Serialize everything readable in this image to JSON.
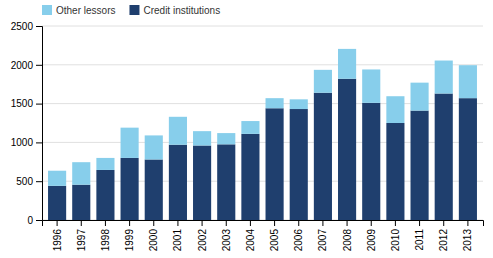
{
  "chart_data": {
    "type": "bar",
    "stacked": true,
    "categories": [
      "1996",
      "1997",
      "1998",
      "1999",
      "2000",
      "2001",
      "2002",
      "2003",
      "2004",
      "2005",
      "2006",
      "2007",
      "2008",
      "2009",
      "2010",
      "2011",
      "2012",
      "2013"
    ],
    "series": [
      {
        "name": "Credit institutions",
        "color": "#1F3F6E",
        "values": [
          440,
          455,
          645,
          800,
          780,
          970,
          960,
          975,
          1110,
          1440,
          1430,
          1640,
          1820,
          1510,
          1250,
          1410,
          1630,
          1570
        ]
      },
      {
        "name": "Other lessors",
        "color": "#87CEEB",
        "values": [
          195,
          290,
          155,
          390,
          310,
          360,
          185,
          145,
          165,
          130,
          125,
          295,
          385,
          430,
          345,
          360,
          425,
          425
        ]
      }
    ],
    "ylim": [
      0,
      2500
    ],
    "yticks": [
      0,
      500,
      1000,
      1500,
      2000,
      2500
    ],
    "grid": true,
    "legend": "upper left"
  }
}
